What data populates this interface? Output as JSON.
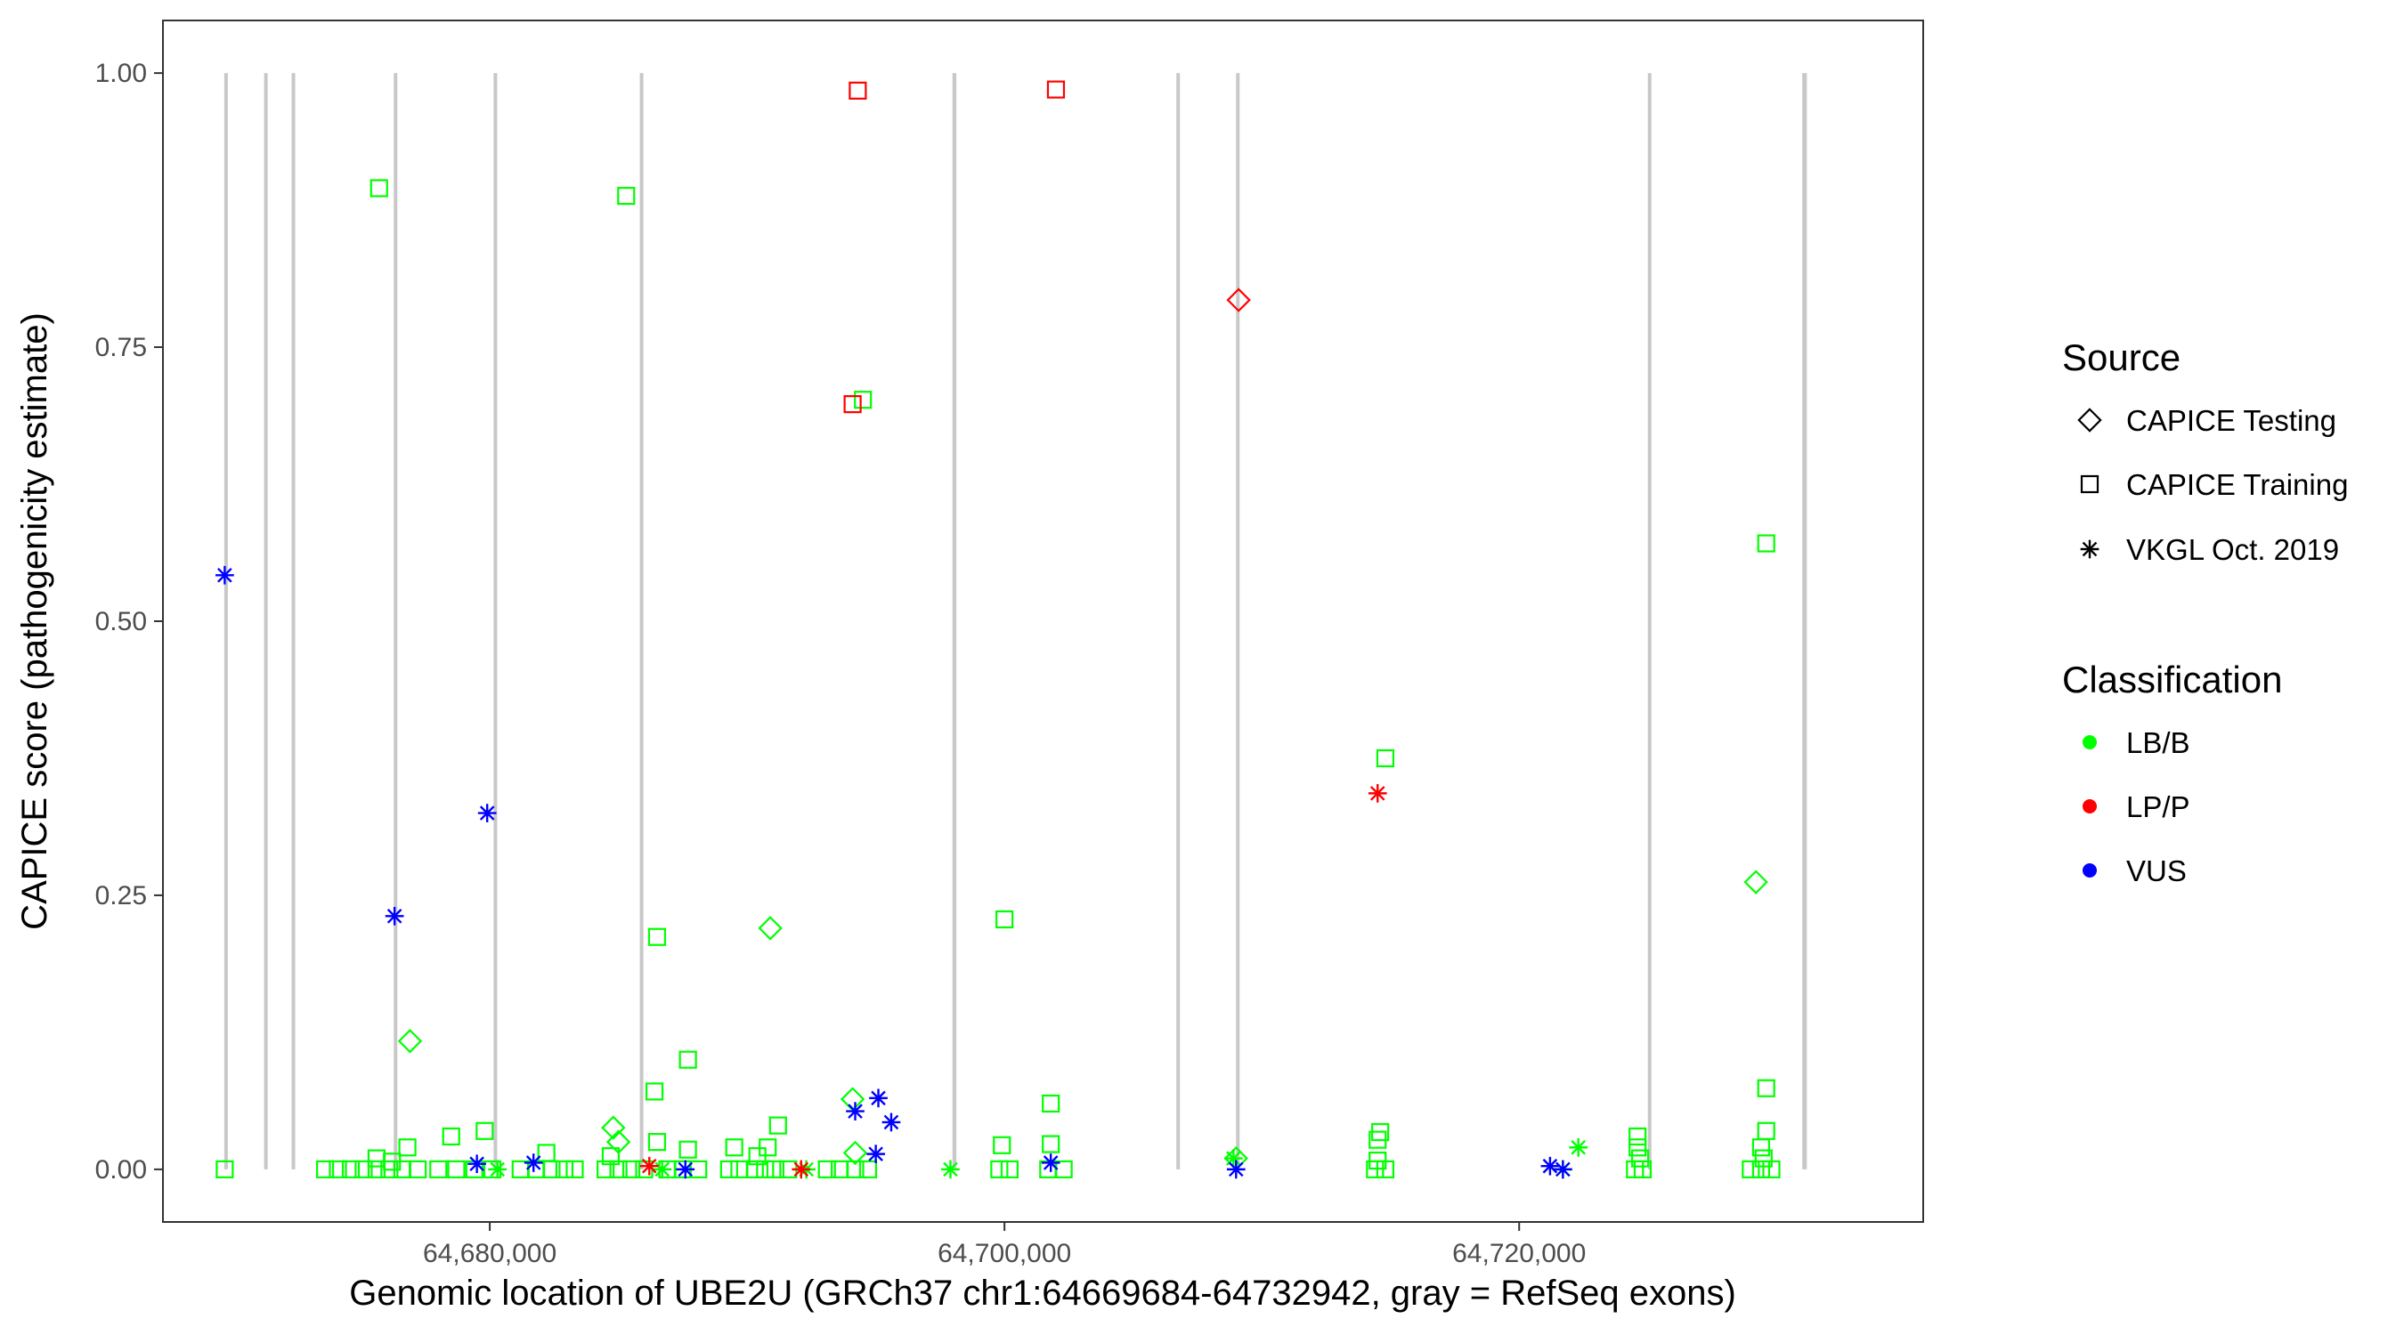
{
  "chart_data": {
    "type": "scatter",
    "xlabel": "Genomic location of UBE2U (GRCh37 chr1:64669684-64732942, gray = RefSeq exons)",
    "ylabel": "CAPICE score (pathogenicity estimate)",
    "xlim": [
      64667300,
      64735700
    ],
    "ylim": [
      -0.048,
      1.048
    ],
    "x_ticks": [
      64680000,
      64700000,
      64720000
    ],
    "x_tick_labels": [
      "64,680,000",
      "64,700,000",
      "64,720,000"
    ],
    "y_ticks": [
      0.0,
      0.25,
      0.5,
      0.75,
      1.0
    ],
    "y_tick_labels": [
      "0.00",
      "0.25",
      "0.50",
      "0.75",
      "1.00"
    ],
    "grid": false,
    "exons": [
      [
        64669684,
        64669790
      ],
      [
        64671230,
        64671330
      ],
      [
        64672300,
        64672390
      ],
      [
        64676270,
        64676380
      ],
      [
        64680150,
        64680250
      ],
      [
        64685830,
        64685930
      ],
      [
        64697980,
        64698130
      ],
      [
        64706680,
        64706800
      ],
      [
        64709000,
        64709100
      ],
      [
        64725000,
        64725120
      ],
      [
        64731000,
        64731180
      ]
    ],
    "legend": {
      "placement": "right",
      "source_title": "Source",
      "source_entries": [
        {
          "label": "CAPICE Testing",
          "shape": "diamond"
        },
        {
          "label": "CAPICE Training",
          "shape": "square"
        },
        {
          "label": "VKGL Oct. 2019",
          "shape": "asterisk"
        }
      ],
      "class_title": "Classification",
      "class_entries": [
        {
          "label": "LB/B",
          "color": "#00ff00"
        },
        {
          "label": "LP/P",
          "color": "#ff0000"
        },
        {
          "label": "VUS",
          "color": "#0000ff"
        }
      ]
    },
    "series": [
      {
        "source": "CAPICE Training",
        "shape": "square",
        "classification": "LB/B",
        "color": "#00ff00",
        "points": [
          [
            64669700,
            0.0
          ],
          [
            64675700,
            0.895
          ],
          [
            64685300,
            0.888
          ],
          [
            64686500,
            0.212
          ],
          [
            64700000,
            0.228
          ],
          [
            64694500,
            0.702
          ],
          [
            64714800,
            0.375
          ],
          [
            64729600,
            0.571
          ],
          [
            64686400,
            0.071
          ],
          [
            64687700,
            0.1
          ],
          [
            64701800,
            0.06
          ],
          [
            64729600,
            0.074
          ],
          [
            64676800,
            0.02
          ],
          [
            64678500,
            0.03
          ],
          [
            64679800,
            0.035
          ],
          [
            64682200,
            0.015
          ],
          [
            64686500,
            0.025
          ],
          [
            64687700,
            0.018
          ],
          [
            64689500,
            0.02
          ],
          [
            64690800,
            0.02
          ],
          [
            64691200,
            0.04
          ],
          [
            64699900,
            0.022
          ],
          [
            64701800,
            0.023
          ],
          [
            64714600,
            0.034
          ],
          [
            64714500,
            0.027
          ],
          [
            64724600,
            0.03
          ],
          [
            64724600,
            0.02
          ],
          [
            64729400,
            0.02
          ],
          [
            64729600,
            0.035
          ],
          [
            64729500,
            0.01
          ],
          [
            64675600,
            0.01
          ],
          [
            64676200,
            0.007
          ],
          [
            64684700,
            0.012
          ],
          [
            64690400,
            0.012
          ],
          [
            64714500,
            0.008
          ],
          [
            64724700,
            0.01
          ],
          [
            64673600,
            0.0
          ],
          [
            64674100,
            0.0
          ],
          [
            64674600,
            0.0
          ],
          [
            64675100,
            0.0
          ],
          [
            64675600,
            0.0
          ],
          [
            64676100,
            0.0
          ],
          [
            64676600,
            0.0
          ],
          [
            64677200,
            0.0
          ],
          [
            64678000,
            0.0
          ],
          [
            64678700,
            0.0
          ],
          [
            64679400,
            0.0
          ],
          [
            64680100,
            0.0
          ],
          [
            64681200,
            0.0
          ],
          [
            64681800,
            0.0
          ],
          [
            64682400,
            0.0
          ],
          [
            64682900,
            0.0
          ],
          [
            64683300,
            0.0
          ],
          [
            64684500,
            0.0
          ],
          [
            64685000,
            0.0
          ],
          [
            64685500,
            0.0
          ],
          [
            64686000,
            0.0
          ],
          [
            64686900,
            0.0
          ],
          [
            64687500,
            0.0
          ],
          [
            64688100,
            0.0
          ],
          [
            64689300,
            0.0
          ],
          [
            64689700,
            0.0
          ],
          [
            64690300,
            0.0
          ],
          [
            64690700,
            0.0
          ],
          [
            64691100,
            0.0
          ],
          [
            64691600,
            0.0
          ],
          [
            64693100,
            0.0
          ],
          [
            64693600,
            0.0
          ],
          [
            64694200,
            0.0
          ],
          [
            64694700,
            0.0
          ],
          [
            64699800,
            0.0
          ],
          [
            64700200,
            0.0
          ],
          [
            64701700,
            0.0
          ],
          [
            64702300,
            0.0
          ],
          [
            64714400,
            0.0
          ],
          [
            64714800,
            0.0
          ],
          [
            64724500,
            0.0
          ],
          [
            64724800,
            0.0
          ],
          [
            64729000,
            0.0
          ],
          [
            64729400,
            0.0
          ],
          [
            64729800,
            0.0
          ]
        ]
      },
      {
        "source": "CAPICE Training",
        "shape": "square",
        "classification": "LP/P",
        "color": "#ff0000",
        "points": [
          [
            64694300,
            0.984
          ],
          [
            64702000,
            0.985
          ],
          [
            64694100,
            0.698
          ]
        ]
      },
      {
        "source": "CAPICE Testing",
        "shape": "diamond",
        "classification": "LB/B",
        "color": "#00ff00",
        "points": [
          [
            64676900,
            0.117
          ],
          [
            64684800,
            0.038
          ],
          [
            64685000,
            0.025
          ],
          [
            64690900,
            0.22
          ],
          [
            64694100,
            0.064
          ],
          [
            64694200,
            0.015
          ],
          [
            64709000,
            0.01
          ],
          [
            64729200,
            0.262
          ]
        ]
      },
      {
        "source": "CAPICE Testing",
        "shape": "diamond",
        "classification": "LP/P",
        "color": "#ff0000",
        "points": [
          [
            64709100,
            0.793
          ]
        ]
      },
      {
        "source": "VKGL Oct. 2019",
        "shape": "asterisk",
        "classification": "LB/B",
        "color": "#00ff00",
        "points": [
          [
            64680300,
            0.0
          ],
          [
            64686700,
            0.0
          ],
          [
            64692300,
            0.0
          ],
          [
            64697900,
            0.0
          ],
          [
            64708900,
            0.01
          ],
          [
            64721700,
            0.0
          ],
          [
            64722300,
            0.02
          ]
        ]
      },
      {
        "source": "VKGL Oct. 2019",
        "shape": "asterisk",
        "classification": "LP/P",
        "color": "#ff0000",
        "points": [
          [
            64686200,
            0.003
          ],
          [
            64692100,
            0.0
          ],
          [
            64714500,
            0.343
          ]
        ]
      },
      {
        "source": "VKGL Oct. 2019",
        "shape": "asterisk",
        "classification": "VUS",
        "color": "#0000ff",
        "points": [
          [
            64669700,
            0.542
          ],
          [
            64676300,
            0.231
          ],
          [
            64679900,
            0.325
          ],
          [
            64694200,
            0.053
          ],
          [
            64695100,
            0.065
          ],
          [
            64695600,
            0.043
          ],
          [
            64695000,
            0.014
          ],
          [
            64679500,
            0.005
          ],
          [
            64681700,
            0.006
          ],
          [
            64687600,
            0.0
          ],
          [
            64701800,
            0.006
          ],
          [
            64709000,
            0.0
          ],
          [
            64721200,
            0.003
          ],
          [
            64721700,
            0.0
          ]
        ]
      }
    ]
  }
}
